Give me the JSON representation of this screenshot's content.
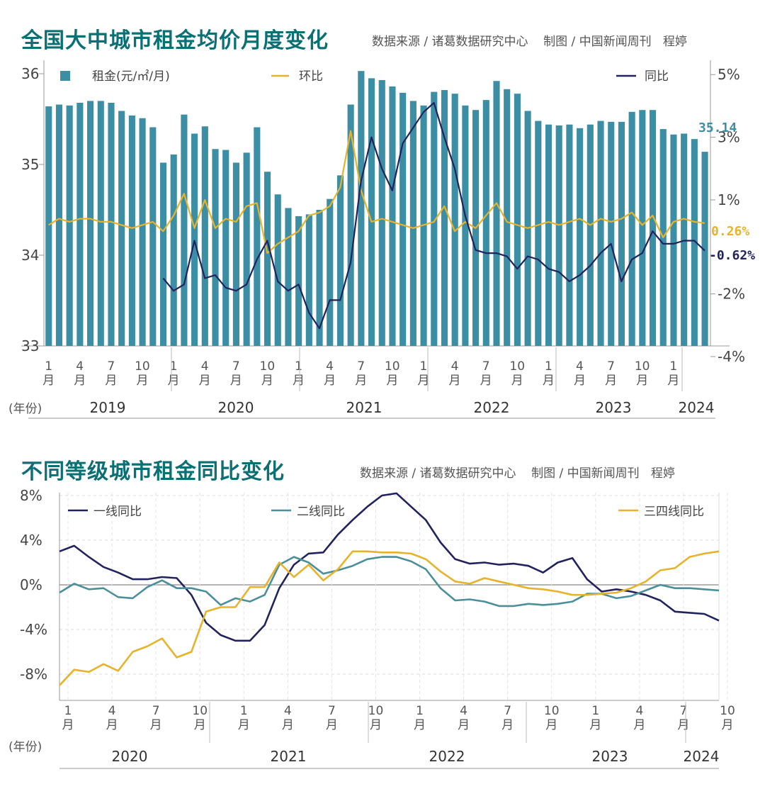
{
  "chart_data": [
    {
      "type": "bar",
      "title": "全国大中城市租金均价月度变化",
      "source": "数据来源 / 诸葛数据研究中心    制图 / 中国新闻周刊   程婷",
      "ylim_left": [
        33,
        36
      ],
      "yticks_left": [
        "36",
        "35",
        "34",
        "33"
      ],
      "yticks_right": [
        "5%",
        "3%",
        "1%",
        "-2%",
        "-4%"
      ],
      "ylim_right": [
        -4,
        5
      ],
      "year_label": "(年份)",
      "years": [
        "2019",
        "2020",
        "2021",
        "2022",
        "2023",
        "2024"
      ],
      "month_ticks": [
        "1\n月",
        "4\n月",
        "7\n月",
        "10\n月",
        "1\n月",
        "4\n月",
        "7\n月",
        "10\n月",
        "1\n月",
        "4\n月",
        "7\n月",
        "10\n月",
        "1\n月",
        "4\n月",
        "7\n月",
        "10\n月",
        "1\n月",
        "4\n月",
        "7\n月",
        "10\n月",
        "1\n月"
      ],
      "legend": {
        "bar": "租金(元/㎡/月)",
        "mom": "环比",
        "yoy": "同比"
      },
      "bar_color": "#3c8ea5",
      "mom_color": "#e6b32b",
      "yoy_color": "#22235e",
      "last_value_label": "35.14",
      "mom_end_label": "0.26%",
      "yoy_end_label": "-0.62%",
      "rent": [
        35.64,
        35.66,
        35.65,
        35.68,
        35.7,
        35.7,
        35.68,
        35.59,
        35.54,
        35.51,
        35.41,
        35.02,
        35.11,
        35.55,
        35.34,
        35.42,
        35.17,
        35.16,
        35.02,
        35.13,
        35.41,
        34.92,
        34.67,
        34.52,
        34.43,
        34.45,
        34.5,
        34.62,
        34.88,
        35.66,
        36.03,
        35.95,
        35.93,
        35.86,
        35.79,
        35.7,
        35.65,
        35.8,
        35.82,
        35.78,
        35.65,
        35.6,
        35.71,
        35.92,
        35.83,
        35.78,
        35.59,
        35.48,
        35.44,
        35.43,
        35.44,
        35.4,
        35.44,
        35.48,
        35.47,
        35.47,
        35.58,
        35.6,
        35.6,
        35.39,
        35.33,
        35.34,
        35.28,
        35.14
      ],
      "mom": [
        0.2,
        0.4,
        0.3,
        0.4,
        0.4,
        0.3,
        0.3,
        0.2,
        0.1,
        0.2,
        0.3,
        0.0,
        0.5,
        1.2,
        0.1,
        1.0,
        0.1,
        0.4,
        0.3,
        0.8,
        0.9,
        -0.7,
        -0.4,
        -0.2,
        0.0,
        0.5,
        0.6,
        0.8,
        1.4,
        3.2,
        1.3,
        0.3,
        0.4,
        0.3,
        0.2,
        0.1,
        0.2,
        0.3,
        0.8,
        0.0,
        0.3,
        0.1,
        0.5,
        0.9,
        0.3,
        0.2,
        0.1,
        0.2,
        0.3,
        0.2,
        0.3,
        0.4,
        0.2,
        0.4,
        0.3,
        0.4,
        0.6,
        0.2,
        0.5,
        -0.2,
        0.3,
        0.4,
        0.3,
        0.26
      ],
      "yoy": [
        -1.5,
        -1.9,
        -1.7,
        -0.3,
        -1.5,
        -1.4,
        -1.8,
        -1.9,
        -1.7,
        -0.9,
        -0.3,
        -1.6,
        -1.9,
        -1.7,
        -2.6,
        -3.1,
        -2.2,
        -2.2,
        -1.0,
        1.6,
        3.0,
        2.0,
        1.3,
        2.8,
        3.3,
        3.8,
        4.1,
        3.0,
        2.0,
        0.5,
        -0.6,
        -0.7,
        -0.7,
        -0.8,
        -1.2,
        -0.8,
        -0.9,
        -1.2,
        -1.3,
        -1.6,
        -1.4,
        -1.1,
        -0.7,
        -0.4,
        -1.6,
        -0.9,
        -0.7,
        0.0,
        -0.4,
        -0.4,
        -0.3,
        -0.3,
        -0.62
      ],
      "yoy_start_index": 11
    },
    {
      "type": "line",
      "title": "不同等级城市租金同比变化",
      "source": "数据来源 / 诸葛数据研究中心    制图 / 中国新闻周刊   程婷",
      "ylim": [
        -10,
        9
      ],
      "yticks": [
        "8%",
        "4%",
        "0%",
        "-4%",
        "-8%"
      ],
      "year_label": "(年份)",
      "years": [
        "2020",
        "2021",
        "2022",
        "2023",
        "2024"
      ],
      "month_ticks": [
        "1\n月",
        "4\n月",
        "7\n月",
        "10\n月",
        "1\n月",
        "4\n月",
        "7\n月",
        "10\n月",
        "1\n月",
        "4\n月",
        "7\n月",
        "10\n月",
        "1\n月",
        "4\n月",
        "7\n月",
        "10\n月",
        "1\n月"
      ],
      "series": [
        {
          "name": "一线同比",
          "color": "#22235e",
          "values": [
            3.0,
            3.5,
            2.5,
            1.6,
            1.1,
            0.5,
            0.5,
            0.7,
            0.6,
            -0.9,
            -3.4,
            -4.5,
            -5.0,
            -5.0,
            -3.6,
            -0.3,
            1.8,
            2.8,
            2.9,
            4.5,
            5.8,
            7.0,
            8.0,
            8.2,
            7.0,
            5.8,
            3.8,
            2.3,
            1.9,
            2.0,
            1.8,
            1.9,
            1.7,
            1.1,
            2.0,
            2.4,
            0.5,
            -0.6,
            -0.4,
            -0.6,
            -0.9,
            -1.4,
            -2.4,
            -2.5,
            -2.6,
            -3.2
          ]
        },
        {
          "name": "二线同比",
          "color": "#4a8f9a",
          "values": [
            -0.7,
            0.1,
            -0.4,
            -0.3,
            -1.1,
            -1.2,
            -0.2,
            0.4,
            -0.3,
            -0.3,
            -0.6,
            -1.8,
            -1.2,
            -1.5,
            -0.9,
            1.8,
            2.5,
            2.0,
            1.0,
            1.3,
            1.7,
            2.3,
            2.5,
            2.5,
            2.1,
            1.4,
            -0.3,
            -1.4,
            -1.3,
            -1.5,
            -1.9,
            -1.9,
            -1.7,
            -1.8,
            -1.7,
            -1.5,
            -0.8,
            -0.8,
            -1.2,
            -1.0,
            -0.5,
            0.0,
            -0.3,
            -0.3,
            -0.4,
            -0.5
          ]
        },
        {
          "name": "三四线同比",
          "color": "#e6b32b",
          "values": [
            -9.0,
            -7.6,
            -7.8,
            -7.1,
            -7.7,
            -6.0,
            -5.5,
            -4.8,
            -6.5,
            -6.0,
            -2.4,
            -2.0,
            -2.0,
            -0.2,
            -0.2,
            2.0,
            0.7,
            1.8,
            0.4,
            1.4,
            3.0,
            3.0,
            2.9,
            2.9,
            2.8,
            2.3,
            1.2,
            0.3,
            0.1,
            0.6,
            0.3,
            0.0,
            -0.3,
            -0.4,
            -0.6,
            -0.9,
            -0.9,
            -0.8,
            -0.7,
            -0.3,
            0.3,
            1.3,
            1.5,
            2.5,
            2.8,
            3.0
          ]
        }
      ]
    }
  ]
}
